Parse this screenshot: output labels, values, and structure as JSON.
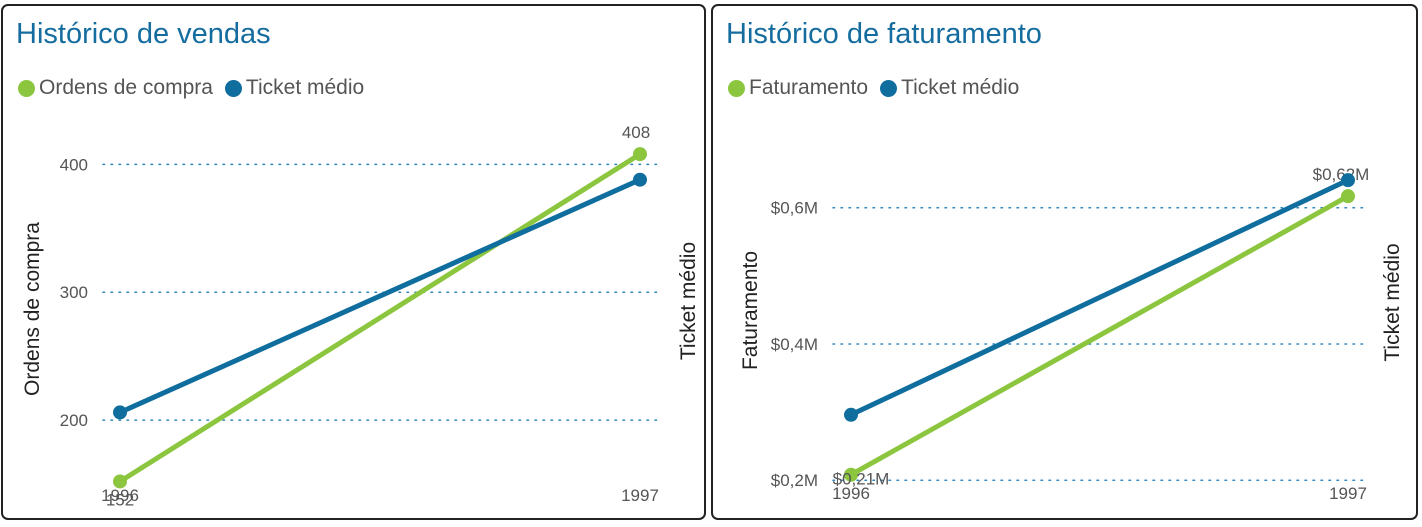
{
  "colors": {
    "title": "#156c9e",
    "green": "#8cc63f",
    "blue": "#106e9e",
    "grid": "#2a86b9",
    "axis_text": "#555555",
    "axis_title": "#222222"
  },
  "panels": [
    {
      "title": "Histórico de vendas",
      "legend": [
        {
          "label": "Ordens de compra",
          "color": "#8cc63f"
        },
        {
          "label": "Ticket médio",
          "color": "#106e9e"
        }
      ]
    },
    {
      "title": "Histórico de faturamento",
      "legend": [
        {
          "label": "Faturamento",
          "color": "#8cc63f"
        },
        {
          "label": "Ticket médio",
          "color": "#106e9e"
        }
      ]
    }
  ],
  "chart_data": [
    {
      "type": "line",
      "title": "Histórico de vendas",
      "x": [
        "1996",
        "1997"
      ],
      "ylabel": "Ordens de compra",
      "y2label": "Ticket médio",
      "ylim": [
        150,
        430
      ],
      "yticks": [
        200,
        300,
        400
      ],
      "ytick_labels": [
        "200",
        "300",
        "400"
      ],
      "grid": true,
      "legend_position": "top-left",
      "series": [
        {
          "name": "Ordens de compra",
          "axis": "left",
          "values": [
            152,
            408
          ],
          "data_labels": [
            "152",
            "408"
          ]
        },
        {
          "name": "Ticket médio",
          "axis": "right",
          "values": [
            1540,
            1670
          ]
        }
      ],
      "y2lim": [
        1500,
        1700
      ]
    },
    {
      "type": "line",
      "title": "Histórico de faturamento",
      "x": [
        "1996",
        "1997"
      ],
      "ylabel": "Faturamento",
      "y2label": "Ticket médio",
      "ylim": [
        190000,
        720000
      ],
      "yticks": [
        200000,
        400000,
        600000
      ],
      "ytick_labels": [
        "$0,2M",
        "$0,4M",
        "$0,6M"
      ],
      "grid": true,
      "legend_position": "top-left",
      "series": [
        {
          "name": "Faturamento",
          "axis": "left",
          "values": [
            208000,
            617000
          ],
          "data_labels": [
            "$0,21M",
            "$0,62M"
          ]
        },
        {
          "name": "Ticket médio",
          "axis": "right",
          "values": [
            1540,
            1670
          ]
        }
      ],
      "y2lim": [
        1500,
        1700
      ]
    }
  ]
}
